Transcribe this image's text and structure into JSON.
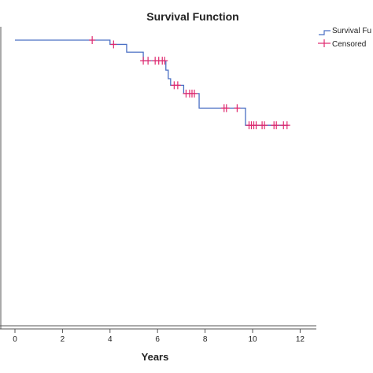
{
  "chart_data": {
    "type": "line",
    "title": "Survival Function",
    "xlabel": "Years",
    "ylabel": "",
    "xlim": [
      -0.3,
      12.7
    ],
    "ylim": [
      0,
      1
    ],
    "x_ticks": [
      0,
      2,
      4,
      6,
      8,
      10,
      12
    ],
    "legend": {
      "position": "top-right",
      "entries": [
        "Survival Fu",
        "Censored"
      ]
    },
    "colors": {
      "survival": "#4a6fc4",
      "censored": "#e0286e",
      "axis": "#555555"
    },
    "series": [
      {
        "name": "Survival Fu",
        "steps": [
          [
            0,
            1.0
          ],
          [
            4.0,
            0.985
          ],
          [
            4.7,
            0.958
          ],
          [
            5.4,
            0.928
          ],
          [
            6.35,
            0.895
          ],
          [
            6.45,
            0.865
          ],
          [
            6.55,
            0.842
          ],
          [
            7.1,
            0.813
          ],
          [
            7.75,
            0.762
          ],
          [
            9.7,
            0.702
          ],
          [
            11.5,
            0.702
          ]
        ]
      }
    ],
    "censored": [
      {
        "x": 3.25,
        "y": 1.0
      },
      {
        "x": 4.15,
        "y": 0.985
      },
      {
        "x": 5.4,
        "y": 0.928
      },
      {
        "x": 5.6,
        "y": 0.928
      },
      {
        "x": 5.9,
        "y": 0.928
      },
      {
        "x": 6.05,
        "y": 0.928
      },
      {
        "x": 6.2,
        "y": 0.928
      },
      {
        "x": 6.3,
        "y": 0.928
      },
      {
        "x": 6.7,
        "y": 0.842
      },
      {
        "x": 6.85,
        "y": 0.842
      },
      {
        "x": 7.2,
        "y": 0.813
      },
      {
        "x": 7.35,
        "y": 0.813
      },
      {
        "x": 7.45,
        "y": 0.813
      },
      {
        "x": 7.55,
        "y": 0.813
      },
      {
        "x": 8.8,
        "y": 0.762
      },
      {
        "x": 8.9,
        "y": 0.762
      },
      {
        "x": 9.35,
        "y": 0.762
      },
      {
        "x": 9.85,
        "y": 0.702
      },
      {
        "x": 9.95,
        "y": 0.702
      },
      {
        "x": 10.05,
        "y": 0.702
      },
      {
        "x": 10.15,
        "y": 0.702
      },
      {
        "x": 10.4,
        "y": 0.702
      },
      {
        "x": 10.5,
        "y": 0.702
      },
      {
        "x": 10.9,
        "y": 0.702
      },
      {
        "x": 11.0,
        "y": 0.702
      },
      {
        "x": 11.3,
        "y": 0.702
      },
      {
        "x": 11.45,
        "y": 0.702
      }
    ]
  }
}
